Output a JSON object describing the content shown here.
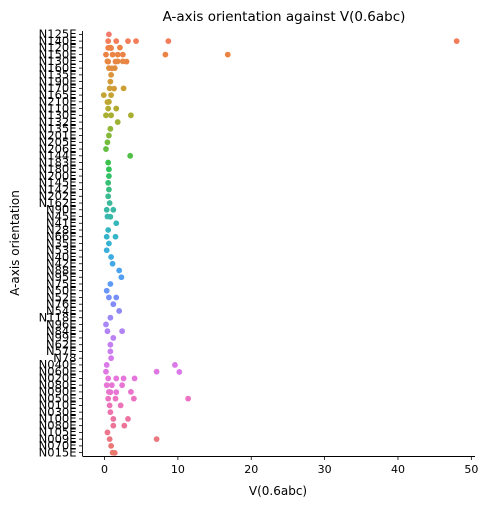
{
  "chart_data": {
    "type": "scatter",
    "subtype": "strip",
    "title": "A-axis orientation against V(0.6abc)",
    "xlabel": "V(0.6abc)",
    "ylabel": "A-axis orientation",
    "xlim": [
      -3,
      50.5
    ],
    "xticks": [
      0,
      10,
      20,
      30,
      40,
      50
    ],
    "grid": false,
    "legend": "none",
    "categories": [
      "N125E",
      "N140E",
      "N120E",
      "N150E",
      "N130E",
      "N160E",
      "N135E",
      "N190E",
      "N170E",
      "N165E",
      "N210E",
      "N110E",
      "N130E",
      "N132E",
      "N135E",
      "N201E",
      "N205E",
      "N206E",
      "N144E",
      "N183E",
      "N180E",
      "N200E",
      "N145E",
      "N142E",
      "N202E",
      "N162E",
      "N90E",
      "N45E",
      "N41E",
      "N28E",
      "N66E",
      "N35E",
      "N53E",
      "N40E",
      "N42E",
      "N88E",
      "N95E",
      "N75E",
      "N50E",
      "N52E",
      "N76E",
      "N54E",
      "N118E",
      "N96E",
      "N84E",
      "N99E",
      "N62E",
      "N57E",
      "N78",
      "N040E",
      "N060E",
      "N020E",
      "N080E",
      "N090E",
      "N050E",
      "N010E",
      "N030E",
      "N100E",
      "N080E",
      "N105E",
      "N009E",
      "N070E",
      "N015E"
    ],
    "colors": [
      "#f37b6b",
      "#f37d5a",
      "#f07f4a",
      "#eb8345",
      "#e68842",
      "#e08e3e",
      "#da943b",
      "#d39a37",
      "#cc9f35",
      "#c4a333",
      "#bba832",
      "#b2ab31",
      "#a8af31",
      "#9db233",
      "#91b536",
      "#84b83a",
      "#75bb3e",
      "#64be43",
      "#52c048",
      "#3dc14d",
      "#2dc356",
      "#33c165",
      "#37bf74",
      "#39bd82",
      "#3abb8f",
      "#3aba9a",
      "#39b9a5",
      "#38b8af",
      "#37b7b9",
      "#36b6c2",
      "#35b4ca",
      "#37b2d2",
      "#3aafda",
      "#3eace1",
      "#43a8e8",
      "#4aa4ee",
      "#529ff2",
      "#5d9af5",
      "#6995f7",
      "#7690f8",
      "#838bf8",
      "#908af7",
      "#9c88f6",
      "#a786f5",
      "#b184f4",
      "#ba82f3",
      "#c380f1",
      "#cb7eef",
      "#d37bec",
      "#da79e8",
      "#df77e3",
      "#e476dc",
      "#e775d4",
      "#e974cb",
      "#eb73c1",
      "#ec73b7",
      "#ed73ac",
      "#ed73a1",
      "#ed7496",
      "#ed758b",
      "#ec7680",
      "#eb7775",
      "#ea786b"
    ],
    "series": [
      {
        "category": "N125E",
        "values": [
          0.6
        ]
      },
      {
        "category": "N140E",
        "values": [
          0.5,
          0.9,
          1.6,
          3.2,
          4.3,
          8.7,
          48.0
        ]
      },
      {
        "category": "N120E",
        "values": [
          0.5
        ]
      },
      {
        "category": "N150E",
        "values": [
          0.2,
          0.5,
          0.8,
          1.1,
          1.5,
          1.8,
          2.1,
          2.5,
          3.0,
          8.3,
          16.8
        ]
      },
      {
        "category": "N130E",
        "values": [
          0.4,
          1.0,
          1.8,
          2.5
        ]
      },
      {
        "category": "N160E",
        "values": [
          0.6,
          1.4
        ]
      },
      {
        "category": "N135E",
        "values": [
          0.9
        ]
      },
      {
        "category": "N190E",
        "values": [
          0.8,
          1.3
        ]
      },
      {
        "category": "N170E",
        "values": [
          0.7,
          2.6
        ]
      },
      {
        "category": "N165E",
        "values": [
          -0.1,
          0.4,
          0.9
        ]
      },
      {
        "category": "N210E",
        "values": [
          0.6
        ]
      },
      {
        "category": "N110E",
        "values": [
          0.5,
          1.6
        ]
      },
      {
        "category": "N130E",
        "values": [
          0.2,
          0.9,
          3.6
        ]
      },
      {
        "category": "N132E",
        "values": [
          1.8
        ]
      },
      {
        "category": "N135E",
        "values": [
          0.8
        ]
      },
      {
        "category": "N201E",
        "values": [
          0.6
        ]
      },
      {
        "category": "N205E",
        "values": [
          0.4
        ]
      },
      {
        "category": "N206E",
        "values": [
          0.2
        ]
      },
      {
        "category": "N144E",
        "values": [
          3.5
        ]
      },
      {
        "category": "N183E",
        "values": [
          0.5
        ]
      },
      {
        "category": "N180E",
        "values": [
          0.6
        ]
      },
      {
        "category": "N200E",
        "values": [
          0.6
        ]
      },
      {
        "category": "N145E",
        "values": [
          0.5
        ]
      },
      {
        "category": "N142E",
        "values": [
          0.6
        ]
      },
      {
        "category": "N202E",
        "values": [
          0.5
        ]
      },
      {
        "category": "N162E",
        "values": [
          0.7
        ]
      },
      {
        "category": "N90E",
        "values": [
          0.3,
          0.8,
          1.2
        ]
      },
      {
        "category": "N45E",
        "values": [
          0.4
        ]
      },
      {
        "category": "N41E",
        "values": [
          1.6
        ]
      },
      {
        "category": "N28E",
        "values": [
          0.5
        ]
      },
      {
        "category": "N66E",
        "values": [
          0.3,
          1.5
        ]
      },
      {
        "category": "N35E",
        "values": [
          0.6
        ]
      },
      {
        "category": "N53E",
        "values": [
          0.3
        ]
      },
      {
        "category": "N40E",
        "values": [
          0.9
        ]
      },
      {
        "category": "N42E",
        "values": [
          1.1
        ]
      },
      {
        "category": "N88E",
        "values": [
          2.0
        ]
      },
      {
        "category": "N95E",
        "values": [
          2.3
        ]
      },
      {
        "category": "N75E",
        "values": [
          0.8
        ]
      },
      {
        "category": "N50E",
        "values": [
          0.3
        ]
      },
      {
        "category": "N52E",
        "values": [
          0.6,
          1.6
        ]
      },
      {
        "category": "N76E",
        "values": [
          1.2
        ]
      },
      {
        "category": "N54E",
        "values": [
          2.0
        ]
      },
      {
        "category": "N118E",
        "values": [
          0.8
        ]
      },
      {
        "category": "N96E",
        "values": [
          0.2
        ]
      },
      {
        "category": "N84E",
        "values": [
          2.4,
          0.4
        ]
      },
      {
        "category": "N99E",
        "values": [
          1.2
        ]
      },
      {
        "category": "N62E",
        "values": [
          0.8
        ]
      },
      {
        "category": "N57E",
        "values": [
          0.8
        ]
      },
      {
        "category": "N78",
        "values": [
          0.9
        ]
      },
      {
        "category": "N040E",
        "values": [
          0.3,
          9.6,
          10.2
        ]
      },
      {
        "category": "N060E",
        "values": [
          0.2,
          7.1
        ]
      },
      {
        "category": "N020E",
        "values": [
          0.5,
          1.6,
          2.6,
          4.1
        ]
      },
      {
        "category": "N080E",
        "values": [
          0.3,
          1.0,
          1.6,
          2.4,
          0.8
        ]
      },
      {
        "category": "N090E",
        "values": [
          0.6,
          3.6
        ]
      },
      {
        "category": "N050E",
        "values": [
          0.5,
          1.5,
          4.0,
          11.4
        ]
      },
      {
        "category": "N010E",
        "values": [
          0.7,
          2.2
        ]
      },
      {
        "category": "N030E",
        "values": [
          0.8
        ]
      },
      {
        "category": "N100E",
        "values": [
          1.2,
          3.2
        ]
      },
      {
        "category": "N080E",
        "values": [
          1.2,
          2.7
        ]
      },
      {
        "category": "N105E",
        "values": [
          0.4
        ]
      },
      {
        "category": "N009E",
        "values": [
          0.7,
          7.1
        ]
      },
      {
        "category": "N070E",
        "values": [
          0.9,
          1.4
        ]
      },
      {
        "category": "N015E",
        "values": [
          1.1
        ]
      }
    ]
  }
}
